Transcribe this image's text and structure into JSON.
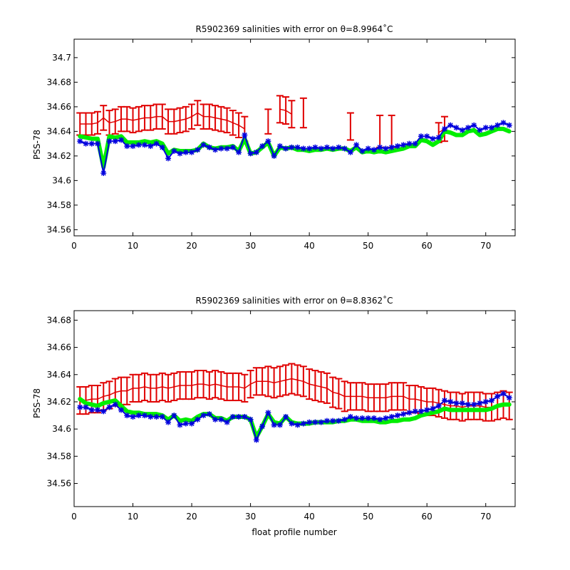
{
  "colors": {
    "red": "#e00000",
    "green": "#00ee00",
    "blue": "#0000dd",
    "frame": "#000000",
    "background": "#ffffff"
  },
  "chart_data": [
    {
      "type": "line",
      "title": "R5902369 salinities with error on θ=8.9964˚C",
      "xlabel": "",
      "ylabel": "PSS-78",
      "xlim": [
        0,
        75
      ],
      "ylim": [
        34.555,
        34.715
      ],
      "xticks": [
        0,
        10,
        20,
        30,
        40,
        50,
        60,
        70
      ],
      "yticks": [
        34.56,
        34.58,
        34.6,
        34.62,
        34.64,
        34.66,
        34.68,
        34.7
      ],
      "ytick_labels": [
        "34.56",
        "34.58",
        "34.6",
        "34.62",
        "34.64",
        "34.66",
        "34.68",
        "34.7"
      ],
      "grid": false,
      "series": [
        {
          "style": "errorbar",
          "color": "red",
          "x": [
            1,
            2,
            3,
            4,
            5,
            6,
            7,
            8,
            9,
            10,
            11,
            12,
            13,
            14,
            15,
            16,
            17,
            18,
            19,
            20,
            21,
            22,
            23,
            24,
            25,
            26,
            27,
            28,
            29,
            33,
            35,
            36,
            37,
            39,
            47,
            52,
            54,
            62,
            63
          ],
          "y": [
            34.646,
            34.646,
            34.646,
            34.647,
            34.651,
            34.647,
            34.648,
            34.65,
            34.65,
            34.649,
            34.65,
            34.651,
            34.651,
            34.652,
            34.652,
            34.648,
            34.648,
            34.649,
            34.65,
            34.652,
            34.655,
            34.652,
            34.652,
            34.651,
            34.65,
            34.649,
            34.647,
            34.645,
            34.642,
            34.648,
            34.658,
            34.657,
            34.654,
            34.655,
            34.644,
            34.64,
            34.64,
            34.639,
            34.642
          ],
          "err": [
            0.009,
            0.009,
            0.009,
            0.009,
            0.01,
            0.01,
            0.01,
            0.01,
            0.01,
            0.01,
            0.01,
            0.01,
            0.01,
            0.01,
            0.01,
            0.01,
            0.01,
            0.01,
            0.01,
            0.01,
            0.01,
            0.01,
            0.01,
            0.01,
            0.01,
            0.01,
            0.01,
            0.01,
            0.01,
            0.01,
            0.011,
            0.011,
            0.011,
            0.012,
            0.011,
            0.013,
            0.013,
            0.008,
            0.01
          ],
          "line_breaks_after_x": [
            29,
            33,
            37,
            39,
            47,
            52,
            54
          ]
        },
        {
          "style": "thick-line",
          "color": "green",
          "x": [
            1,
            2,
            3,
            4,
            5,
            6,
            7,
            8,
            9,
            10,
            11,
            12,
            13,
            14,
            15,
            16,
            17,
            18,
            19,
            20,
            21,
            22,
            23,
            24,
            25,
            26,
            27,
            28,
            29,
            30,
            31,
            32,
            33,
            34,
            35,
            36,
            37,
            38,
            39,
            40,
            41,
            42,
            43,
            44,
            45,
            46,
            47,
            48,
            49,
            50,
            51,
            52,
            53,
            54,
            55,
            56,
            57,
            58,
            59,
            60,
            61,
            62,
            63,
            64,
            65,
            66,
            67,
            68,
            69,
            70,
            71,
            72,
            73,
            74
          ],
          "y": [
            34.636,
            34.635,
            34.634,
            34.634,
            34.611,
            34.636,
            34.635,
            34.636,
            34.631,
            34.631,
            34.631,
            34.632,
            34.631,
            34.632,
            34.63,
            34.622,
            34.625,
            34.624,
            34.624,
            34.624,
            34.625,
            34.63,
            34.627,
            34.626,
            34.627,
            34.627,
            34.628,
            34.624,
            34.634,
            34.622,
            34.623,
            34.627,
            34.631,
            34.62,
            34.627,
            34.626,
            34.627,
            34.625,
            34.625,
            34.624,
            34.625,
            34.625,
            34.626,
            34.625,
            34.626,
            34.626,
            34.624,
            34.627,
            34.623,
            34.624,
            34.623,
            34.624,
            34.623,
            34.624,
            34.625,
            34.626,
            34.628,
            34.628,
            34.633,
            34.632,
            34.629,
            34.632,
            34.64,
            34.639,
            34.637,
            34.637,
            34.64,
            34.641,
            34.637,
            34.638,
            34.64,
            34.642,
            34.642,
            34.64
          ]
        },
        {
          "style": "line-marker",
          "color": "blue",
          "marker": "*",
          "x": [
            1,
            2,
            3,
            4,
            5,
            6,
            7,
            8,
            9,
            10,
            11,
            12,
            13,
            14,
            15,
            16,
            17,
            18,
            19,
            20,
            21,
            22,
            23,
            24,
            25,
            26,
            27,
            28,
            29,
            30,
            31,
            32,
            33,
            34,
            35,
            36,
            37,
            38,
            39,
            40,
            41,
            42,
            43,
            44,
            45,
            46,
            47,
            48,
            49,
            50,
            51,
            52,
            53,
            54,
            55,
            56,
            57,
            58,
            59,
            60,
            61,
            62,
            63,
            64,
            65,
            66,
            67,
            68,
            69,
            70,
            71,
            72,
            73,
            74
          ],
          "y": [
            34.632,
            34.63,
            34.63,
            34.63,
            34.606,
            34.632,
            34.632,
            34.633,
            34.628,
            34.628,
            34.629,
            34.629,
            34.628,
            34.63,
            34.627,
            34.618,
            34.624,
            34.622,
            34.623,
            34.623,
            34.625,
            34.629,
            34.627,
            34.625,
            34.626,
            34.626,
            34.627,
            34.623,
            34.637,
            34.622,
            34.623,
            34.628,
            34.632,
            34.62,
            34.628,
            34.626,
            34.627,
            34.627,
            34.626,
            34.626,
            34.627,
            34.626,
            34.627,
            34.626,
            34.627,
            34.626,
            34.623,
            34.629,
            34.624,
            34.626,
            34.625,
            34.627,
            34.626,
            34.627,
            34.628,
            34.629,
            34.63,
            34.63,
            34.636,
            34.636,
            34.634,
            34.635,
            34.642,
            34.645,
            34.643,
            34.641,
            34.643,
            34.645,
            34.641,
            34.643,
            34.643,
            34.645,
            34.647,
            34.645
          ]
        }
      ]
    },
    {
      "type": "line",
      "title": "R5902369 salinities with error on θ=8.8362˚C",
      "xlabel": "float profile number",
      "ylabel": "PSS-78",
      "xlim": [
        0,
        75
      ],
      "ylim": [
        34.543,
        34.687
      ],
      "xticks": [
        0,
        10,
        20,
        30,
        40,
        50,
        60,
        70
      ],
      "yticks": [
        34.56,
        34.58,
        34.6,
        34.62,
        34.64,
        34.66,
        34.68
      ],
      "ytick_labels": [
        "34.56",
        "34.58",
        "34.6",
        "34.62",
        "34.64",
        "34.66",
        "34.68"
      ],
      "grid": false,
      "series": [
        {
          "style": "errorbar",
          "color": "red",
          "x": [
            1,
            2,
            3,
            4,
            5,
            6,
            7,
            8,
            9,
            10,
            11,
            12,
            13,
            14,
            15,
            16,
            17,
            18,
            19,
            20,
            21,
            22,
            23,
            24,
            25,
            26,
            27,
            28,
            29,
            30,
            31,
            32,
            33,
            34,
            35,
            36,
            37,
            38,
            39,
            40,
            41,
            42,
            43,
            44,
            45,
            46,
            47,
            48,
            49,
            50,
            51,
            52,
            53,
            54,
            55,
            56,
            57,
            58,
            59,
            60,
            61,
            62,
            63,
            64,
            65,
            66,
            67,
            68,
            69,
            70,
            71,
            72,
            73,
            74
          ],
          "y": [
            34.621,
            34.621,
            34.622,
            34.622,
            34.624,
            34.625,
            34.627,
            34.628,
            34.628,
            34.63,
            34.63,
            34.631,
            34.63,
            34.63,
            34.631,
            34.63,
            34.631,
            34.632,
            34.632,
            34.632,
            34.633,
            34.633,
            34.632,
            34.633,
            34.632,
            34.631,
            34.631,
            34.631,
            34.63,
            34.633,
            34.635,
            34.635,
            34.635,
            34.634,
            34.635,
            34.636,
            34.637,
            34.636,
            34.635,
            34.633,
            34.632,
            34.631,
            34.63,
            34.627,
            34.626,
            34.624,
            34.624,
            34.624,
            34.624,
            34.623,
            34.623,
            34.623,
            34.623,
            34.624,
            34.624,
            34.624,
            34.622,
            34.622,
            34.621,
            34.62,
            34.62,
            34.619,
            34.618,
            34.617,
            34.617,
            34.616,
            34.617,
            34.617,
            34.617,
            34.616,
            34.616,
            34.617,
            34.618,
            34.617
          ],
          "err": [
            0.01,
            0.01,
            0.01,
            0.01,
            0.01,
            0.01,
            0.01,
            0.01,
            0.01,
            0.01,
            0.01,
            0.01,
            0.01,
            0.01,
            0.01,
            0.01,
            0.01,
            0.01,
            0.01,
            0.01,
            0.01,
            0.01,
            0.01,
            0.01,
            0.01,
            0.01,
            0.01,
            0.01,
            0.01,
            0.01,
            0.01,
            0.01,
            0.011,
            0.011,
            0.011,
            0.011,
            0.011,
            0.011,
            0.011,
            0.011,
            0.011,
            0.011,
            0.011,
            0.011,
            0.011,
            0.011,
            0.01,
            0.01,
            0.01,
            0.01,
            0.01,
            0.01,
            0.01,
            0.01,
            0.01,
            0.01,
            0.01,
            0.01,
            0.01,
            0.01,
            0.01,
            0.01,
            0.01,
            0.01,
            0.01,
            0.01,
            0.01,
            0.01,
            0.01,
            0.01,
            0.01,
            0.01,
            0.01,
            0.01
          ],
          "line_breaks_after_x": []
        },
        {
          "style": "thick-line",
          "color": "green",
          "x": [
            1,
            2,
            3,
            4,
            5,
            6,
            7,
            8,
            9,
            10,
            11,
            12,
            13,
            14,
            15,
            16,
            17,
            18,
            19,
            20,
            21,
            22,
            23,
            24,
            25,
            26,
            27,
            28,
            29,
            30,
            31,
            32,
            33,
            34,
            35,
            36,
            37,
            38,
            39,
            40,
            41,
            42,
            43,
            44,
            45,
            46,
            47,
            48,
            49,
            50,
            51,
            52,
            53,
            54,
            55,
            56,
            57,
            58,
            59,
            60,
            61,
            62,
            63,
            64,
            65,
            66,
            67,
            68,
            69,
            70,
            71,
            72,
            73,
            74
          ],
          "y": [
            34.622,
            34.619,
            34.618,
            34.617,
            34.619,
            34.62,
            34.621,
            34.617,
            34.613,
            34.612,
            34.612,
            34.611,
            34.611,
            34.611,
            34.61,
            34.607,
            34.61,
            34.606,
            34.607,
            34.606,
            34.609,
            34.611,
            34.611,
            34.608,
            34.608,
            34.606,
            34.609,
            34.609,
            34.609,
            34.607,
            34.594,
            34.602,
            34.611,
            34.605,
            34.604,
            34.609,
            34.605,
            34.604,
            34.604,
            34.604,
            34.605,
            34.605,
            34.605,
            34.605,
            34.606,
            34.606,
            34.607,
            34.607,
            34.606,
            34.606,
            34.606,
            34.605,
            34.605,
            34.606,
            34.606,
            34.607,
            34.607,
            34.608,
            34.61,
            34.611,
            34.612,
            34.613,
            34.615,
            34.614,
            34.614,
            34.614,
            34.614,
            34.614,
            34.614,
            34.614,
            34.615,
            34.617,
            34.618,
            34.618
          ]
        },
        {
          "style": "line-marker",
          "color": "blue",
          "marker": "*",
          "x": [
            1,
            2,
            3,
            4,
            5,
            6,
            7,
            8,
            9,
            10,
            11,
            12,
            13,
            14,
            15,
            16,
            17,
            18,
            19,
            20,
            21,
            22,
            23,
            24,
            25,
            26,
            27,
            28,
            29,
            30,
            31,
            32,
            33,
            34,
            35,
            36,
            37,
            38,
            39,
            40,
            41,
            42,
            43,
            44,
            45,
            46,
            47,
            48,
            49,
            50,
            51,
            52,
            53,
            54,
            55,
            56,
            57,
            58,
            59,
            60,
            61,
            62,
            63,
            64,
            65,
            66,
            67,
            68,
            69,
            70,
            71,
            72,
            73,
            74
          ],
          "y": [
            34.616,
            34.616,
            34.614,
            34.614,
            34.613,
            34.616,
            34.618,
            34.614,
            34.61,
            34.609,
            34.61,
            34.61,
            34.609,
            34.609,
            34.609,
            34.605,
            34.61,
            34.603,
            34.604,
            34.604,
            34.607,
            34.61,
            34.611,
            34.607,
            34.607,
            34.605,
            34.609,
            34.609,
            34.609,
            34.607,
            34.592,
            34.602,
            34.612,
            34.603,
            34.603,
            34.609,
            34.604,
            34.603,
            34.604,
            34.605,
            34.605,
            34.605,
            34.606,
            34.606,
            34.606,
            34.607,
            34.609,
            34.608,
            34.608,
            34.608,
            34.608,
            34.607,
            34.608,
            34.609,
            34.61,
            34.611,
            34.612,
            34.613,
            34.613,
            34.614,
            34.615,
            34.617,
            34.621,
            34.62,
            34.619,
            34.619,
            34.618,
            34.618,
            34.619,
            34.62,
            34.621,
            34.624,
            34.626,
            34.623
          ]
        }
      ]
    }
  ]
}
